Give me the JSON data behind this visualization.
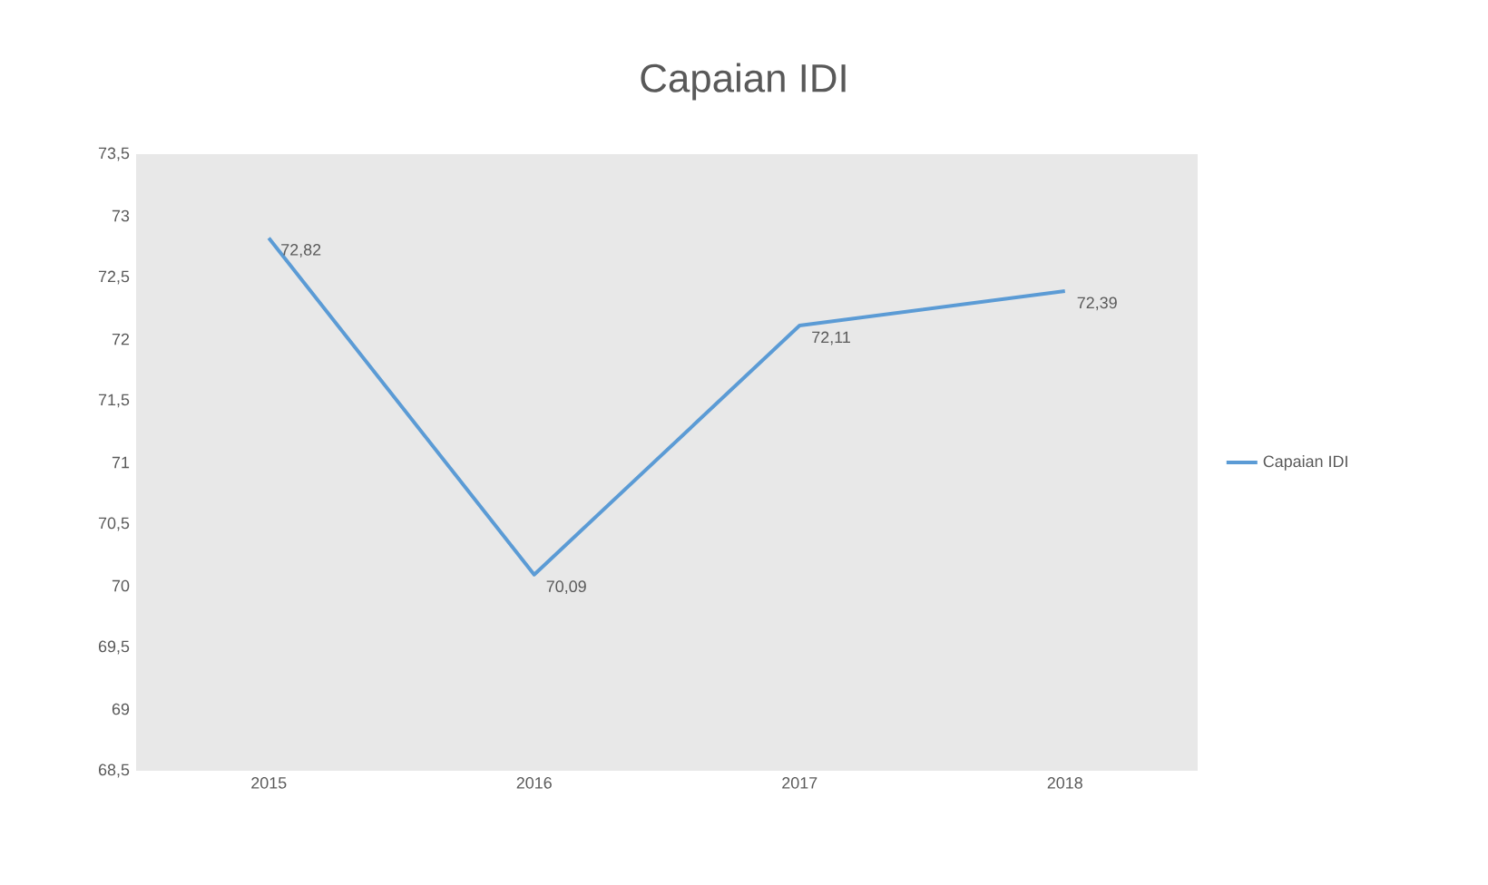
{
  "chart_data": {
    "type": "line",
    "title": "Capaian IDI",
    "categories": [
      "2015",
      "2016",
      "2017",
      "2018"
    ],
    "series": [
      {
        "name": "Capaian IDI",
        "color": "#5b9bd5",
        "values": [
          72.82,
          70.09,
          72.11,
          72.39
        ]
      }
    ],
    "value_labels": [
      "72,82",
      "70,09",
      "72,11",
      "72,39"
    ],
    "ylim": [
      68.5,
      73.5
    ],
    "yticks": [
      {
        "value": 68.5,
        "label": "68,5"
      },
      {
        "value": 69,
        "label": "69"
      },
      {
        "value": 69.5,
        "label": "69,5"
      },
      {
        "value": 70,
        "label": "70"
      },
      {
        "value": 70.5,
        "label": "70,5"
      },
      {
        "value": 71,
        "label": "71"
      },
      {
        "value": 71.5,
        "label": "71,5"
      },
      {
        "value": 72,
        "label": "72"
      },
      {
        "value": 72.5,
        "label": "72,5"
      },
      {
        "value": 73,
        "label": "73"
      },
      {
        "value": 73.5,
        "label": "73,5"
      }
    ],
    "grid": false,
    "legend": "right",
    "marker": "none",
    "line_style": "solid"
  }
}
